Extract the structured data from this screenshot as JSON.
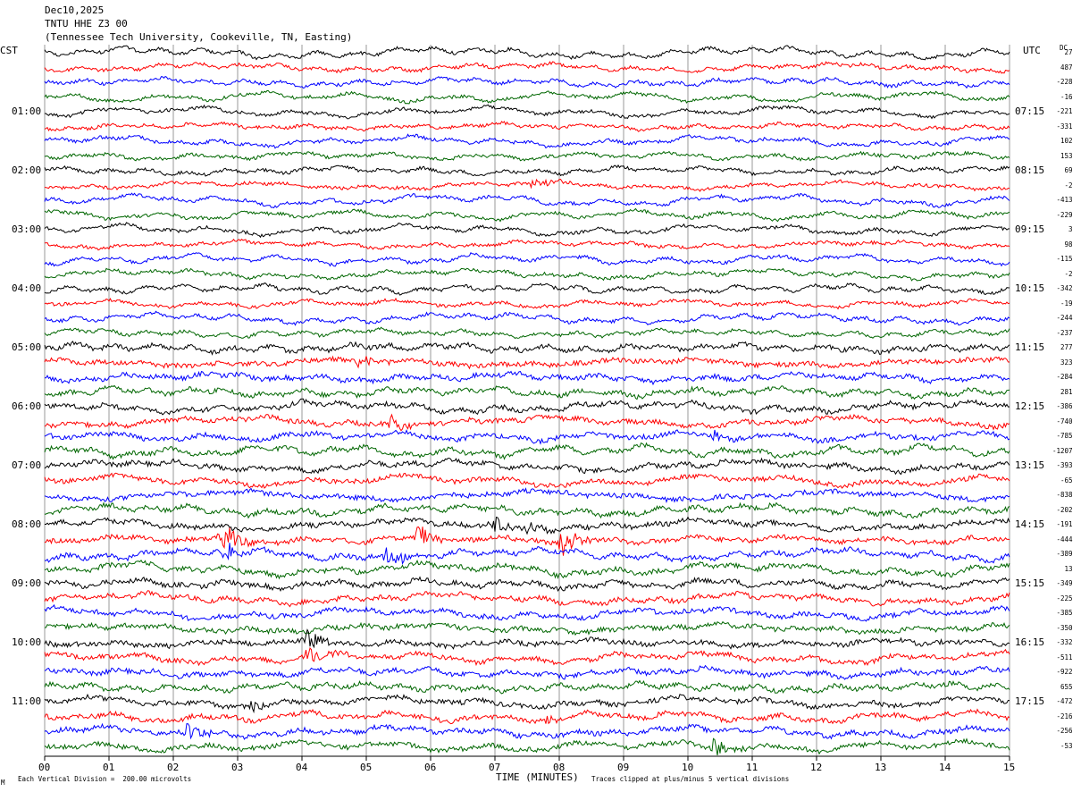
{
  "header": {
    "date": "Dec10,2025",
    "station": "TNTU HHE Z3 00",
    "location": "(Tennessee Tech University, Cookeville, TN, Easting)"
  },
  "left_axis_title": "CST",
  "right_axis_title": "UTC",
  "dc_title": "DC",
  "footer": {
    "scale_note": "Each Vertical Division =  200.00 microvolts",
    "xlabel": "TIME (MINUTES)",
    "clip_note": "Traces clipped at plus/minus 5 vertical divisions",
    "corner_mark": "M"
  },
  "chart_data": {
    "type": "line",
    "subtype": "helicorder",
    "xlim": [
      0,
      15
    ],
    "x_ticks": [
      "00",
      "01",
      "02",
      "03",
      "04",
      "05",
      "06",
      "07",
      "08",
      "09",
      "10",
      "11",
      "12",
      "13",
      "14",
      "15"
    ],
    "trace_count": 48,
    "trace_colors": [
      "#000000",
      "#ff0000",
      "#0000ff",
      "#006600"
    ],
    "left_time_labels": [
      {
        "trace": 4,
        "label": "01:00"
      },
      {
        "trace": 8,
        "label": "02:00"
      },
      {
        "trace": 12,
        "label": "03:00"
      },
      {
        "trace": 16,
        "label": "04:00"
      },
      {
        "trace": 20,
        "label": "05:00"
      },
      {
        "trace": 24,
        "label": "06:00"
      },
      {
        "trace": 28,
        "label": "07:00"
      },
      {
        "trace": 32,
        "label": "08:00"
      },
      {
        "trace": 36,
        "label": "09:00"
      },
      {
        "trace": 40,
        "label": "10:00"
      },
      {
        "trace": 44,
        "label": "11:00"
      }
    ],
    "right_time_labels": [
      {
        "trace": 4,
        "label": "07:15"
      },
      {
        "trace": 8,
        "label": "08:15"
      },
      {
        "trace": 12,
        "label": "09:15"
      },
      {
        "trace": 16,
        "label": "10:15"
      },
      {
        "trace": 20,
        "label": "11:15"
      },
      {
        "trace": 24,
        "label": "12:15"
      },
      {
        "trace": 28,
        "label": "13:15"
      },
      {
        "trace": 32,
        "label": "14:15"
      },
      {
        "trace": 36,
        "label": "15:15"
      },
      {
        "trace": 40,
        "label": "16:15"
      },
      {
        "trace": 44,
        "label": "17:15"
      }
    ],
    "dc_offsets": [
      "27",
      "487",
      "-228",
      "-16",
      "-221",
      "-331",
      "102",
      "153",
      "69",
      "-2",
      "-413",
      "-229",
      "3",
      "98",
      "-115",
      "-2",
      "-342",
      "-19",
      "-244",
      "-237",
      "277",
      "323",
      "-284",
      "281",
      "-386",
      "-740",
      "-785",
      "-1207",
      "-393",
      "-65",
      "-838",
      "-202",
      "-191",
      "-444",
      "-389",
      "13",
      "-349",
      "-225",
      "-385",
      "-350",
      "-332",
      "-511",
      "-922",
      "655",
      "-472",
      "-216",
      "-256",
      "-53"
    ],
    "events": [
      {
        "trace": 33,
        "x": 2.75,
        "amp": 20
      },
      {
        "trace": 34,
        "x": 2.8,
        "amp": 14
      },
      {
        "trace": 34,
        "x": 5.3,
        "amp": 16
      },
      {
        "trace": 33,
        "x": 5.8,
        "amp": 15
      },
      {
        "trace": 32,
        "x": 7.0,
        "amp": 12
      },
      {
        "trace": 32,
        "x": 7.5,
        "amp": 9
      },
      {
        "trace": 33,
        "x": 8.05,
        "amp": 18
      },
      {
        "trace": 40,
        "x": 4.05,
        "amp": 16
      },
      {
        "trace": 41,
        "x": 4.1,
        "amp": 13
      },
      {
        "trace": 46,
        "x": 2.15,
        "amp": 14
      },
      {
        "trace": 47,
        "x": 10.4,
        "amp": 12
      },
      {
        "trace": 25,
        "x": 5.4,
        "amp": 10
      },
      {
        "trace": 26,
        "x": 10.4,
        "amp": 8
      },
      {
        "trace": 44,
        "x": 3.2,
        "amp": 8
      },
      {
        "trace": 45,
        "x": 7.8,
        "amp": 8
      },
      {
        "trace": 21,
        "x": 4.9,
        "amp": 9
      },
      {
        "trace": 9,
        "x": 7.6,
        "amp": 8
      }
    ]
  }
}
